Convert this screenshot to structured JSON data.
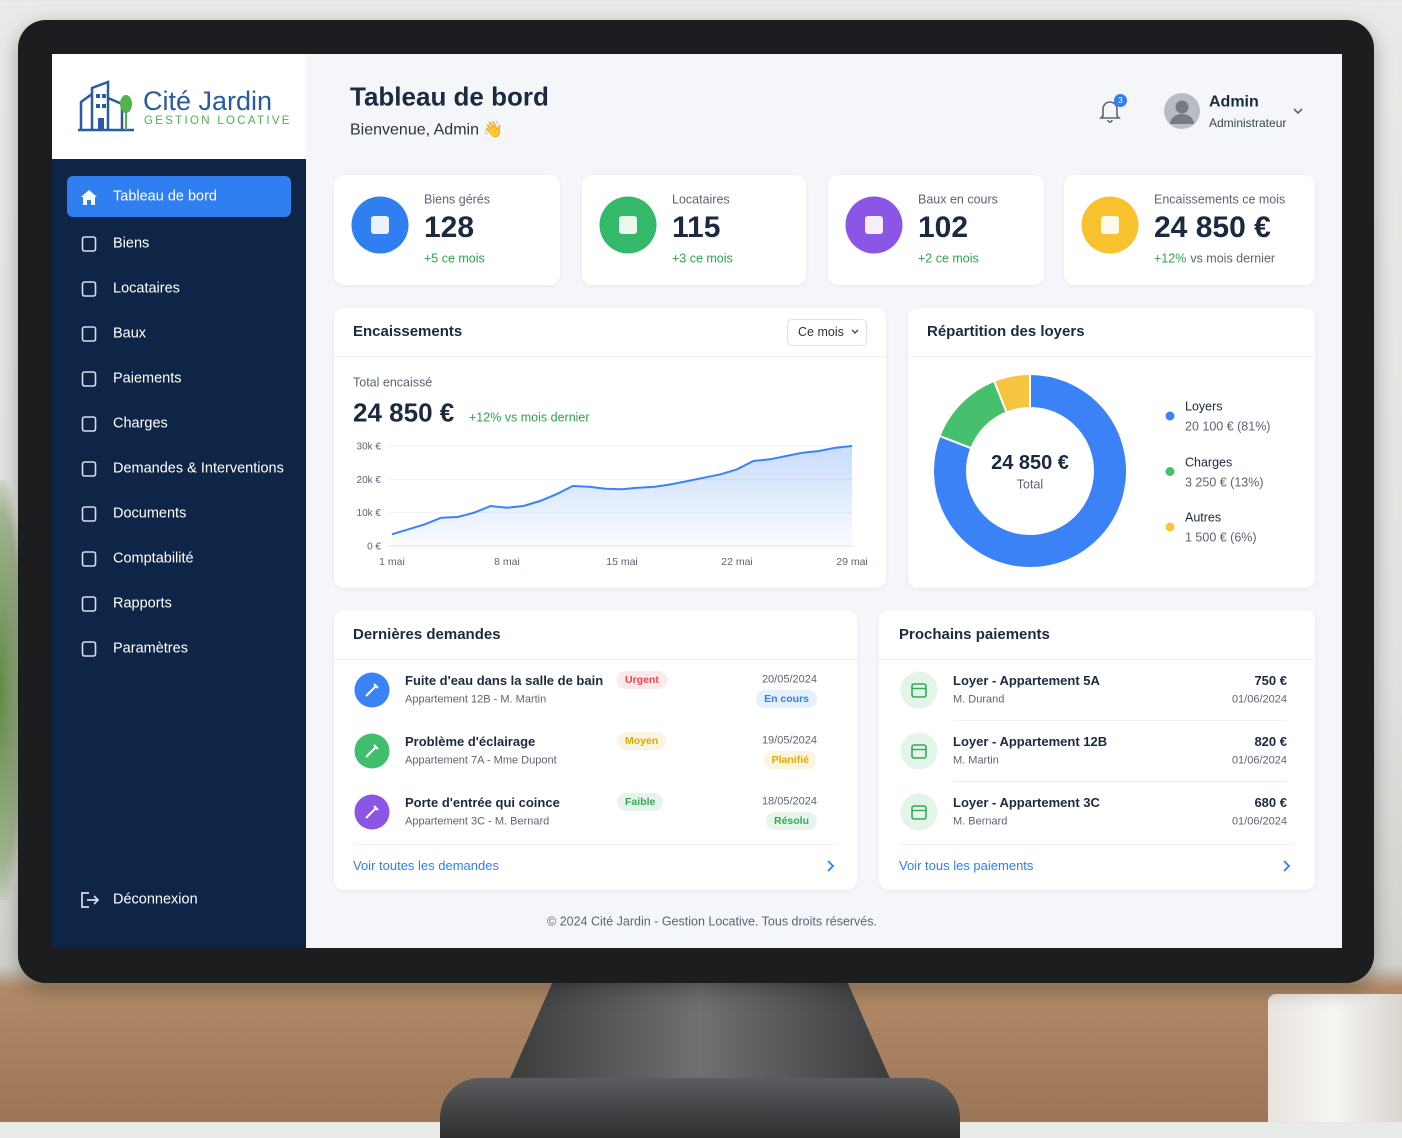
{
  "sidebar": {
    "logo": {
      "name": "Cité Jardin",
      "tagline": "GESTION LOCATIVE"
    },
    "nav": [
      "Tableau de bord",
      "Biens",
      "Locataires",
      "Baux",
      "Paiements",
      "Charges",
      "Demandes & Interventions",
      "Documents",
      "Comptabilité",
      "Rapports",
      "Paramètres"
    ],
    "logout": "Déconnexion"
  },
  "header": {
    "title": "Tableau de bord",
    "greeting": "Bienvenue, Admin 👋",
    "notifications": 3,
    "user": {
      "name": "Admin",
      "role": "Administrateur"
    }
  },
  "stats": [
    {
      "label": "Biens gérés",
      "value": 128,
      "change": "+5 ce mois",
      "color": "#2f7ff0"
    },
    {
      "label": "Locataires",
      "value": 115,
      "change": "+3 ce mois",
      "color": "#34b96a"
    },
    {
      "label": "Baux en cours",
      "value": 102,
      "change": "+2 ce mois",
      "color": "#8b55e6"
    },
    {
      "label": "Encaissements ce mois",
      "value": "24 850 €",
      "change": "+12%",
      "note": "vs mois dernier",
      "color": "#f8c22e"
    }
  ],
  "encaissements": {
    "title": "Encaissements",
    "period": "Ce mois",
    "total_label": "Total encaissé",
    "total": "24 850 €",
    "change": "+12% vs mois dernier",
    "chart": {
      "type": "line",
      "categories": [
        "1 mai",
        null,
        null,
        null,
        null,
        null,
        null,
        "8 mai",
        null,
        null,
        null,
        null,
        null,
        null,
        "15 mai",
        null,
        null,
        null,
        null,
        null,
        null,
        "22 mai",
        null,
        null,
        null,
        null,
        null,
        null,
        "29 mai"
      ],
      "values": [
        3500,
        5000,
        6500,
        8500,
        8700,
        10000,
        12000,
        11500,
        12000,
        13500,
        15500,
        18000,
        17800,
        17200,
        17000,
        17500,
        17800,
        18500,
        19500,
        20500,
        21500,
        23000,
        25500,
        26000,
        27000,
        28000,
        28500,
        29500,
        30000
      ],
      "color": "#3b82f6",
      "ylim": [
        0,
        30000
      ],
      "yticks": [
        {
          "value": 0,
          "label": "0 €"
        },
        {
          "value": 10000,
          "label": "10k €"
        },
        {
          "value": 20000,
          "label": "20k €"
        },
        {
          "value": 30000,
          "label": "30k €"
        }
      ],
      "grid": true
    }
  },
  "repartition": {
    "title": "Répartition des loyers",
    "total": "24 850 €",
    "total_label": "Total",
    "chart": {
      "type": "pie",
      "categories": [
        "Loyers",
        "Charges",
        "Autres"
      ],
      "values": [
        20100,
        3250,
        1500
      ],
      "value_labels": [
        "20 100 € (81%)",
        "3 250 € (13%)",
        "1 500 € (6%)"
      ],
      "colors": [
        "#3b82f6",
        "#46c06c",
        "#f7c43f"
      ]
    }
  },
  "demandes": {
    "title": "Dernières demandes",
    "link": "Voir toutes les demandes",
    "items": [
      {
        "title": "Fuite d'eau dans la salle de bain",
        "subtitle": "Appartement 12B - M. Martin",
        "priority": "Urgent",
        "priority_color": "#e5484d",
        "date": "20/05/2024",
        "status": "En cours",
        "status_color": "#2f7ff0",
        "color": "#3b82f6"
      },
      {
        "title": "Problème d'éclairage",
        "subtitle": "Appartement 7A - Mme Dupont",
        "priority": "Moyen",
        "priority_color": "#e0a800",
        "date": "19/05/2024",
        "status": "Planifié",
        "status_color": "#e0a800",
        "color": "#3fbf6d"
      },
      {
        "title": "Porte d'entrée qui coince",
        "subtitle": "Appartement 3C - M. Bernard",
        "priority": "Faible",
        "priority_color": "#35a85a",
        "date": "18/05/2024",
        "status": "Résolu",
        "status_color": "#35a85a",
        "color": "#8b55e6"
      }
    ]
  },
  "paiements": {
    "title": "Prochains paiements",
    "link": "Voir tous les paiements",
    "items": [
      {
        "title": "Loyer - Appartement 5A",
        "subtitle": "M. Durand",
        "amount": "750 €",
        "date": "01/06/2024"
      },
      {
        "title": "Loyer - Appartement 12B",
        "subtitle": "M. Martin",
        "amount": "820 €",
        "date": "01/06/2024"
      },
      {
        "title": "Loyer - Appartement 3C",
        "subtitle": "M. Bernard",
        "amount": "680 €",
        "date": "01/06/2024"
      }
    ]
  },
  "footer": "© 2024 Cité Jardin - Gestion Locative. Tous droits réservés."
}
